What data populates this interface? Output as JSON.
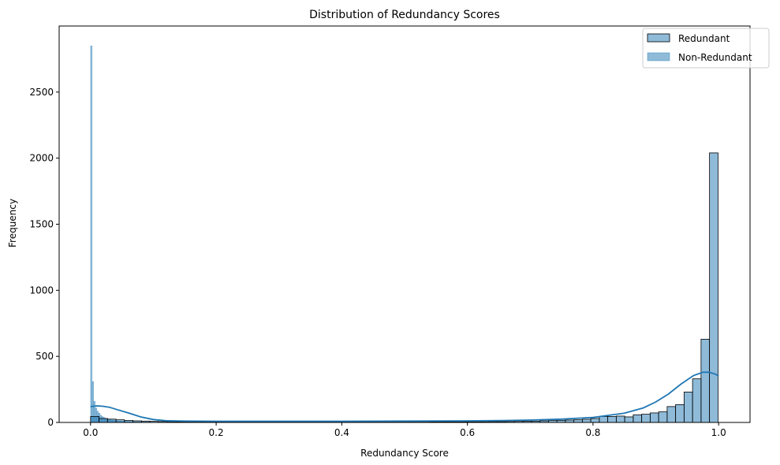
{
  "chart_data": {
    "type": "histogram",
    "title": "Distribution of Redundancy Scores",
    "xlabel": "Redundancy Score",
    "ylabel": "Frequency",
    "xlim": [
      -0.05,
      1.05
    ],
    "ylim": [
      0,
      3000
    ],
    "xticks": [
      0.0,
      0.2,
      0.4,
      0.6,
      0.8,
      1.0
    ],
    "xtick_labels": [
      "0.0",
      "0.2",
      "0.4",
      "0.6",
      "0.8",
      "1.0"
    ],
    "yticks": [
      0,
      500,
      1000,
      1500,
      2000,
      2500
    ],
    "ytick_labels": [
      "0",
      "500",
      "1000",
      "1500",
      "2000",
      "2500"
    ],
    "grid": false,
    "legend_placement": "top-right",
    "legend": [
      {
        "label": "Redundant",
        "style": "outlined"
      },
      {
        "label": "Non-Redundant",
        "style": "filled"
      }
    ],
    "series": [
      {
        "name": "Redundant",
        "color": "#1f77b4",
        "bin_width": 0.0135,
        "bins": [
          [
            0.0,
            45
          ],
          [
            0.0135,
            30
          ],
          [
            0.027,
            25
          ],
          [
            0.0405,
            20
          ],
          [
            0.054,
            15
          ],
          [
            0.0675,
            12
          ],
          [
            0.081,
            10
          ],
          [
            0.0945,
            8
          ],
          [
            0.108,
            7
          ],
          [
            0.1215,
            6
          ],
          [
            0.135,
            5
          ],
          [
            0.1485,
            5
          ],
          [
            0.162,
            4
          ],
          [
            0.1755,
            4
          ],
          [
            0.189,
            4
          ],
          [
            0.2025,
            4
          ],
          [
            0.216,
            3
          ],
          [
            0.2295,
            3
          ],
          [
            0.243,
            3
          ],
          [
            0.2565,
            3
          ],
          [
            0.27,
            3
          ],
          [
            0.2835,
            3
          ],
          [
            0.297,
            3
          ],
          [
            0.3105,
            3
          ],
          [
            0.324,
            3
          ],
          [
            0.3375,
            3
          ],
          [
            0.351,
            3
          ],
          [
            0.3645,
            3
          ],
          [
            0.378,
            3
          ],
          [
            0.3915,
            3
          ],
          [
            0.405,
            3
          ],
          [
            0.4185,
            3
          ],
          [
            0.432,
            3
          ],
          [
            0.4455,
            3
          ],
          [
            0.459,
            3
          ],
          [
            0.4725,
            3
          ],
          [
            0.486,
            3
          ],
          [
            0.4995,
            3
          ],
          [
            0.513,
            3
          ],
          [
            0.5265,
            3
          ],
          [
            0.54,
            4
          ],
          [
            0.5535,
            4
          ],
          [
            0.567,
            4
          ],
          [
            0.5805,
            4
          ],
          [
            0.594,
            5
          ],
          [
            0.6075,
            5
          ],
          [
            0.621,
            5
          ],
          [
            0.6345,
            6
          ],
          [
            0.648,
            6
          ],
          [
            0.6615,
            7
          ],
          [
            0.675,
            8
          ],
          [
            0.6885,
            9
          ],
          [
            0.702,
            10
          ],
          [
            0.7155,
            12
          ],
          [
            0.729,
            14
          ],
          [
            0.7425,
            16
          ],
          [
            0.756,
            18
          ],
          [
            0.7695,
            20
          ],
          [
            0.783,
            24
          ],
          [
            0.7965,
            30
          ],
          [
            0.81,
            45
          ],
          [
            0.8235,
            45
          ],
          [
            0.837,
            48
          ],
          [
            0.8505,
            42
          ],
          [
            0.864,
            58
          ],
          [
            0.8775,
            62
          ],
          [
            0.891,
            72
          ],
          [
            0.9045,
            80
          ],
          [
            0.918,
            120
          ],
          [
            0.9315,
            135
          ],
          [
            0.945,
            230
          ],
          [
            0.9585,
            330
          ],
          [
            0.972,
            630
          ],
          [
            0.9855,
            2040
          ]
        ]
      },
      {
        "name": "Non-Redundant",
        "color": "#1f77b4",
        "bin_width": 0.0025,
        "bins": [
          [
            0.0,
            2850
          ],
          [
            0.0025,
            310
          ],
          [
            0.005,
            160
          ],
          [
            0.0075,
            110
          ],
          [
            0.01,
            85
          ],
          [
            0.0125,
            70
          ],
          [
            0.015,
            55
          ],
          [
            0.0175,
            45
          ],
          [
            0.02,
            38
          ],
          [
            0.0225,
            32
          ],
          [
            0.025,
            28
          ],
          [
            0.0275,
            24
          ],
          [
            0.03,
            21
          ],
          [
            0.0325,
            18
          ],
          [
            0.035,
            16
          ],
          [
            0.0375,
            14
          ],
          [
            0.04,
            12
          ],
          [
            0.0425,
            11
          ],
          [
            0.045,
            10
          ],
          [
            0.0475,
            9
          ],
          [
            0.05,
            8
          ],
          [
            0.0525,
            7
          ],
          [
            0.055,
            7
          ],
          [
            0.0575,
            6
          ],
          [
            0.06,
            6
          ],
          [
            0.0625,
            5
          ],
          [
            0.065,
            5
          ],
          [
            0.0675,
            5
          ],
          [
            0.07,
            4
          ],
          [
            0.0725,
            4
          ],
          [
            0.075,
            4
          ],
          [
            0.0775,
            4
          ],
          [
            0.08,
            3
          ],
          [
            0.0825,
            3
          ],
          [
            0.085,
            3
          ],
          [
            0.0875,
            3
          ],
          [
            0.09,
            3
          ],
          [
            0.0925,
            2
          ],
          [
            0.095,
            2
          ],
          [
            0.0975,
            2
          ]
        ]
      }
    ],
    "kde": {
      "name": "Redundant",
      "color": "#1f77b4",
      "points": [
        [
          0.0,
          120
        ],
        [
          0.01,
          125
        ],
        [
          0.02,
          122
        ],
        [
          0.03,
          115
        ],
        [
          0.04,
          100
        ],
        [
          0.06,
          72
        ],
        [
          0.08,
          42
        ],
        [
          0.1,
          22
        ],
        [
          0.12,
          13
        ],
        [
          0.15,
          10
        ],
        [
          0.2,
          9
        ],
        [
          0.3,
          9
        ],
        [
          0.4,
          9
        ],
        [
          0.5,
          10
        ],
        [
          0.6,
          12
        ],
        [
          0.65,
          14
        ],
        [
          0.7,
          18
        ],
        [
          0.75,
          25
        ],
        [
          0.8,
          38
        ],
        [
          0.85,
          70
        ],
        [
          0.88,
          110
        ],
        [
          0.9,
          155
        ],
        [
          0.92,
          215
        ],
        [
          0.94,
          290
        ],
        [
          0.96,
          355
        ],
        [
          0.975,
          380
        ],
        [
          0.985,
          380
        ],
        [
          0.995,
          365
        ],
        [
          1.0,
          352
        ]
      ]
    }
  }
}
